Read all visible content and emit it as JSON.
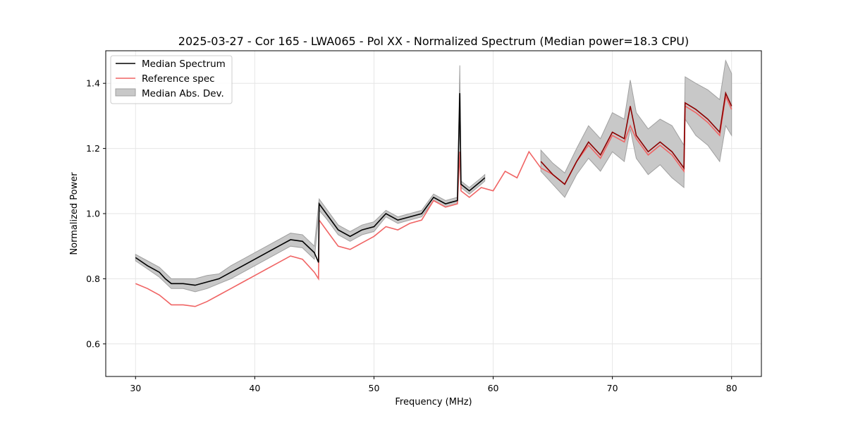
{
  "chart_data": {
    "type": "line",
    "title": "2025-03-27 - Cor 165 - LWA065 - Pol XX - Normalized Spectrum (Median power=18.3 CPU)",
    "xlabel": "Frequency (MHz)",
    "ylabel": "Normalized Power",
    "xlim": [
      27.5,
      82.5
    ],
    "ylim": [
      0.5,
      1.5
    ],
    "xticks": [
      30,
      40,
      50,
      60,
      70,
      80
    ],
    "yticks": [
      0.6,
      0.8,
      1.0,
      1.2,
      1.4
    ],
    "xtick_labels": [
      "30",
      "40",
      "50",
      "60",
      "70",
      "80"
    ],
    "ytick_labels": [
      "0.6",
      "0.8",
      "1.0",
      "1.2",
      "1.4"
    ],
    "grid": true,
    "legend_position": "top-left",
    "legend": [
      "Median Spectrum",
      "Reference spec",
      "Median Abs. Dev."
    ],
    "colors": {
      "median": "#000000",
      "reference": "#f06464",
      "mad_fill": "#c8c8c8",
      "mad_edge": "#a0a0a0",
      "overlap": "#8b0000",
      "grid": "#e6e6e6"
    },
    "series": [
      {
        "name": "Median Spectrum",
        "segments": [
          {
            "x": [
              30.0,
              31.0,
              32.0,
              32.5,
              33.0,
              34.0,
              35.0,
              36.0,
              37.0,
              38.0,
              39.0,
              40.0,
              41.0,
              42.0,
              43.0,
              44.0,
              45.0,
              45.35,
              45.4,
              46.0,
              47.0,
              48.0,
              49.0,
              50.0,
              51.0,
              52.0,
              53.0,
              54.0,
              55.0,
              56.0,
              57.0,
              57.2,
              57.3,
              58.0,
              59.0,
              59.3
            ],
            "y": [
              0.865,
              0.84,
              0.82,
              0.8,
              0.785,
              0.785,
              0.78,
              0.79,
              0.8,
              0.82,
              0.84,
              0.86,
              0.88,
              0.9,
              0.92,
              0.915,
              0.88,
              0.85,
              1.03,
              1.0,
              0.95,
              0.93,
              0.95,
              0.96,
              1.0,
              0.98,
              0.99,
              1.0,
              1.05,
              1.03,
              1.04,
              1.37,
              1.09,
              1.07,
              1.1,
              1.11
            ]
          },
          {
            "x": [
              64.0,
              65.0,
              66.0,
              67.0,
              68.0,
              69.0,
              70.0,
              71.0,
              71.5,
              72.0,
              73.0,
              74.0,
              75.0,
              76.0,
              76.1,
              77.0,
              78.0,
              79.0,
              79.5,
              80.0
            ],
            "y": [
              1.16,
              1.12,
              1.09,
              1.16,
              1.22,
              1.18,
              1.25,
              1.23,
              1.33,
              1.24,
              1.19,
              1.22,
              1.19,
              1.14,
              1.34,
              1.32,
              1.29,
              1.25,
              1.37,
              1.33
            ]
          }
        ]
      },
      {
        "name": "Reference spec",
        "segments": [
          {
            "x": [
              30.0,
              31.0,
              32.0,
              32.5,
              33.0,
              34.0,
              35.0,
              36.0,
              37.0,
              38.0,
              39.0,
              40.0,
              41.0,
              42.0,
              43.0,
              44.0,
              45.0,
              45.35,
              45.4,
              46.0,
              47.0,
              48.0,
              49.0,
              50.0,
              51.0,
              52.0,
              53.0,
              54.0,
              55.0,
              56.0,
              57.0,
              57.2,
              57.3,
              58.0,
              59.0,
              60.0,
              61.0,
              62.0,
              63.0,
              64.0,
              65.0,
              66.0,
              67.0,
              68.0,
              69.0,
              70.0,
              71.0,
              71.5,
              72.0,
              73.0,
              74.0,
              75.0,
              76.0,
              76.1,
              77.0,
              78.0,
              79.0,
              79.5,
              80.0
            ],
            "y": [
              0.785,
              0.77,
              0.75,
              0.735,
              0.72,
              0.72,
              0.715,
              0.73,
              0.75,
              0.77,
              0.79,
              0.81,
              0.83,
              0.85,
              0.87,
              0.86,
              0.82,
              0.8,
              0.98,
              0.95,
              0.9,
              0.89,
              0.91,
              0.93,
              0.96,
              0.95,
              0.97,
              0.98,
              1.04,
              1.02,
              1.03,
              1.19,
              1.07,
              1.05,
              1.08,
              1.07,
              1.13,
              1.11,
              1.19,
              1.14,
              1.12,
              1.09,
              1.16,
              1.21,
              1.17,
              1.24,
              1.22,
              1.27,
              1.23,
              1.18,
              1.21,
              1.18,
              1.13,
              1.33,
              1.31,
              1.28,
              1.24,
              1.36,
              1.32
            ]
          }
        ]
      },
      {
        "name": "Median Abs. Dev.",
        "segments": [
          {
            "x": [
              30.0,
              31.0,
              32.0,
              33.0,
              34.0,
              35.0,
              36.0,
              37.0,
              38.0,
              39.0,
              40.0,
              41.0,
              42.0,
              43.0,
              44.0,
              45.0,
              45.4,
              46.0,
              47.0,
              48.0,
              49.0,
              50.0,
              51.0,
              52.0,
              53.0,
              54.0,
              55.0,
              56.0,
              57.0,
              57.2,
              57.3,
              58.0,
              59.0,
              59.3
            ],
            "lower": [
              0.855,
              0.83,
              0.805,
              0.77,
              0.77,
              0.76,
              0.77,
              0.785,
              0.8,
              0.82,
              0.84,
              0.86,
              0.88,
              0.9,
              0.895,
              0.86,
              1.01,
              0.985,
              0.935,
              0.915,
              0.935,
              0.945,
              0.99,
              0.97,
              0.98,
              0.99,
              1.04,
              1.02,
              1.03,
              1.3,
              1.08,
              1.06,
              1.09,
              1.1
            ],
            "upper": [
              0.875,
              0.855,
              0.835,
              0.8,
              0.8,
              0.8,
              0.81,
              0.815,
              0.84,
              0.86,
              0.88,
              0.9,
              0.92,
              0.94,
              0.935,
              0.9,
              1.045,
              1.015,
              0.965,
              0.945,
              0.965,
              0.975,
              1.01,
              0.99,
              1.0,
              1.01,
              1.06,
              1.04,
              1.05,
              1.455,
              1.1,
              1.08,
              1.11,
              1.12
            ]
          },
          {
            "x": [
              64.0,
              65.0,
              66.0,
              67.0,
              68.0,
              69.0,
              70.0,
              71.0,
              71.5,
              72.0,
              73.0,
              74.0,
              75.0,
              76.0,
              76.1,
              77.0,
              78.0,
              79.0,
              79.5,
              80.0
            ],
            "lower": [
              1.13,
              1.09,
              1.05,
              1.12,
              1.17,
              1.13,
              1.19,
              1.16,
              1.26,
              1.17,
              1.12,
              1.15,
              1.11,
              1.08,
              1.29,
              1.24,
              1.21,
              1.16,
              1.27,
              1.24
            ],
            "upper": [
              1.195,
              1.155,
              1.125,
              1.2,
              1.27,
              1.23,
              1.31,
              1.29,
              1.41,
              1.31,
              1.26,
              1.29,
              1.27,
              1.21,
              1.42,
              1.4,
              1.38,
              1.35,
              1.47,
              1.43
            ]
          }
        ]
      }
    ]
  }
}
